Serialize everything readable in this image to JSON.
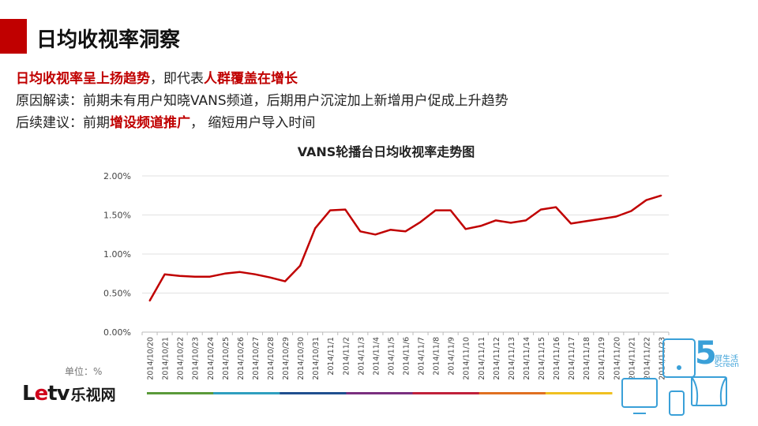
{
  "page_title": "日均收视率洞察",
  "intro": {
    "line1": {
      "p1": "日均收视率呈上扬趋势",
      "p2": "，即代表",
      "p3": "人群覆盖在增长"
    },
    "line2": "原因解读：前期未有用户知晓VANS频道，后期用户沉淀加上新增用户促成上升趋势",
    "line3": {
      "p1": "后续建议：前期",
      "p2": "增设频道推广",
      "p3": "， 缩短用户导入时间"
    }
  },
  "unit_label": "单位：%",
  "logo": {
    "latin_l": "L",
    "latin_e": "e",
    "latin_tv": "tv",
    "cn": "乐视网"
  },
  "five_screen": {
    "num": "5",
    "cn": "屏生活",
    "en": "Screen"
  },
  "colors": {
    "line": "#c00000",
    "accent": "#c00000",
    "five_screen_blue": "#3aa0d8"
  },
  "chart_data": {
    "type": "line",
    "title": "VANS轮播台日均收视率走势图",
    "xlabel": "",
    "ylabel": "",
    "ylim": [
      0,
      2
    ],
    "y_ticks": [
      "0.00%",
      "0.50%",
      "1.00%",
      "1.50%",
      "2.00%"
    ],
    "grid": true,
    "categories": [
      "2014/10/20",
      "2014/10/21",
      "2014/10/22",
      "2014/10/23",
      "2014/10/24",
      "2014/10/25",
      "2014/10/26",
      "2014/10/27",
      "2014/10/28",
      "2014/10/29",
      "2014/10/30",
      "2014/10/31",
      "2014/11/1",
      "2014/11/2",
      "2014/11/3",
      "2014/11/4",
      "2014/11/5",
      "2014/11/6",
      "2014/11/7",
      "2014/11/8",
      "2014/11/9",
      "2014/11/10",
      "2014/11/11",
      "2014/11/12",
      "2014/11/13",
      "2014/11/14",
      "2014/11/15",
      "2014/11/16",
      "2014/11/17",
      "2014/11/18",
      "2014/11/19",
      "2014/11/20",
      "2014/11/21",
      "2014/11/22",
      "2014/11/23"
    ],
    "values": [
      0.4,
      0.74,
      0.72,
      0.71,
      0.71,
      0.75,
      0.77,
      0.74,
      0.7,
      0.65,
      0.85,
      1.33,
      1.56,
      1.57,
      1.29,
      1.25,
      1.31,
      1.29,
      1.41,
      1.56,
      1.56,
      1.32,
      1.36,
      1.43,
      1.4,
      1.43,
      1.57,
      1.6,
      1.39,
      1.42,
      1.45,
      1.48,
      1.55,
      1.69,
      1.75
    ]
  }
}
